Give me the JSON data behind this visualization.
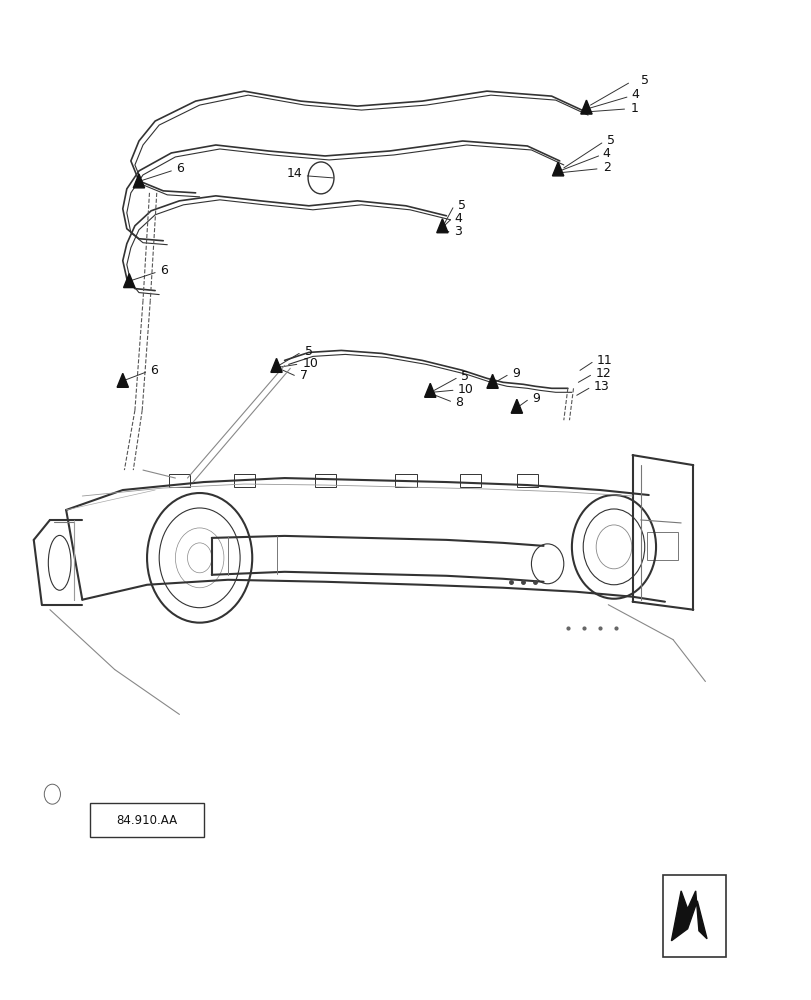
{
  "title": "",
  "background_color": "#ffffff",
  "line_color": "#333333",
  "label_color": "#111111",
  "fig_width": 8.12,
  "fig_height": 10.0,
  "dpi": 100,
  "callout_label_fontsize": 9,
  "ref_label": "84.910.AA"
}
